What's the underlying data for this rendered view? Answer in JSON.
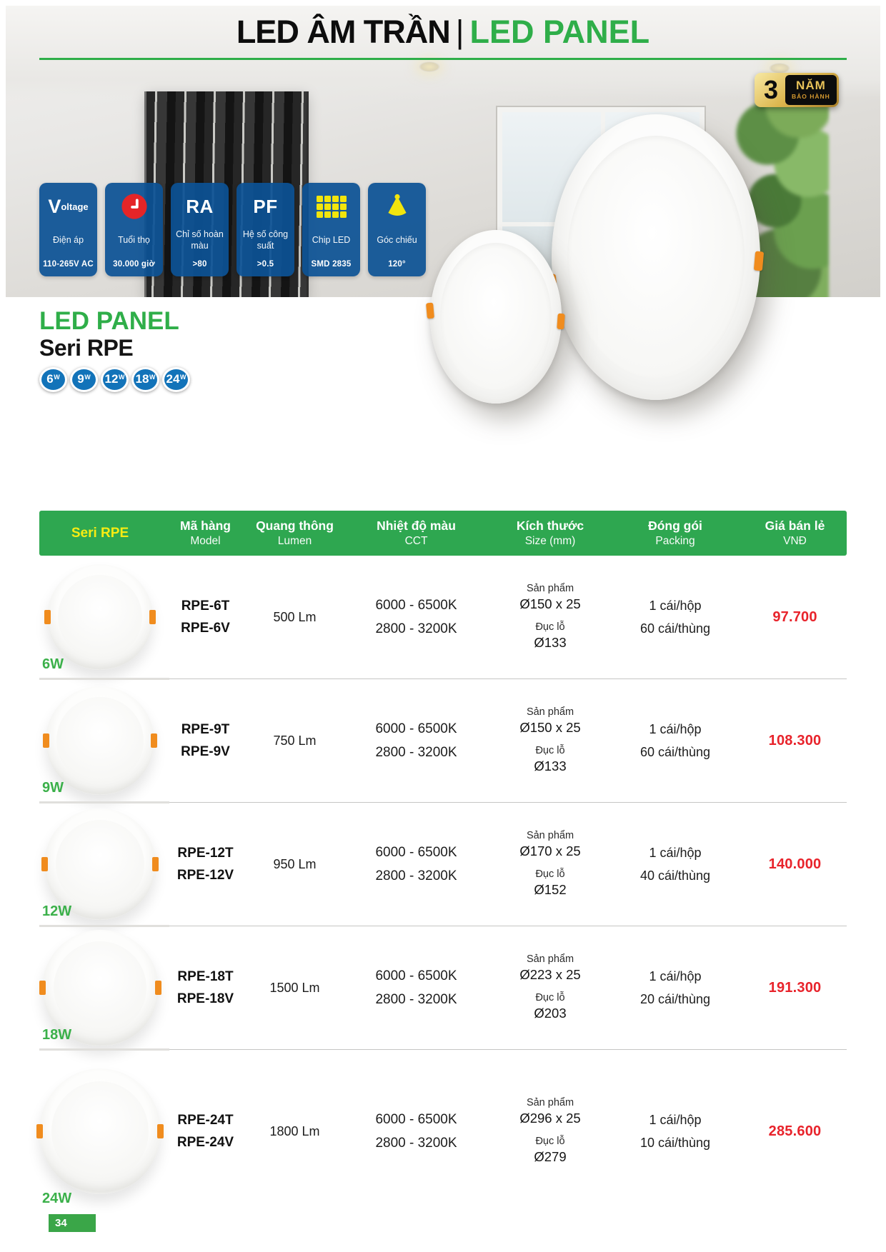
{
  "page": {
    "title_black": "LED ÂM TRẦN",
    "title_separator": "|",
    "title_green": "LED PANEL",
    "page_number": "34"
  },
  "warranty_badge": {
    "number": "3",
    "unit": "NĂM",
    "caption": "BẢO HÀNH"
  },
  "spec_cards": {
    "voltage": {
      "brand_initial": "V",
      "brand_rest": "oltage",
      "label": "Điện áp",
      "value": "110-265V AC"
    },
    "lifetime": {
      "label": "Tuổi thọ",
      "value": "30.000 giờ"
    },
    "ra": {
      "title": "RA",
      "label": "Chỉ số hoàn màu",
      "value": ">80"
    },
    "pf": {
      "title": "PF",
      "label": "Hệ số công suất",
      "value": ">0.5"
    },
    "chip": {
      "label": "Chip LED",
      "value": "SMD 2835"
    },
    "beam": {
      "label": "Góc chiếu",
      "value": "120°"
    }
  },
  "series": {
    "heading_green": "LED PANEL",
    "heading_black": "Seri RPE",
    "wattage_badges": [
      {
        "num": "6",
        "unit": "W"
      },
      {
        "num": "9",
        "unit": "W"
      },
      {
        "num": "12",
        "unit": "W"
      },
      {
        "num": "18",
        "unit": "W"
      },
      {
        "num": "24",
        "unit": "W"
      }
    ]
  },
  "table": {
    "header": {
      "seri": "Seri RPE",
      "model_vi": "Mã hàng",
      "model_en": "Model",
      "lumen_vi": "Quang thông",
      "lumen_en": "Lumen",
      "cct_vi": "Nhiệt độ màu",
      "cct_en": "CCT",
      "size_vi": "Kích thước",
      "size_en": "Size (mm)",
      "pack_vi": "Đóng gói",
      "pack_en": "Packing",
      "price_vi": "Giá bán lẻ",
      "price_en": "VNĐ"
    },
    "rows": [
      {
        "watt": "6W",
        "model1": "RPE-6T",
        "model2": "RPE-6V",
        "lumen": "500 Lm",
        "cct1": "6000 - 6500K",
        "cct2": "2800 - 3200K",
        "size_product_label": "Sản phẩm",
        "size_product": "Ø150 x 25",
        "size_hole_label": "Đục lỗ",
        "size_hole": "Ø133",
        "pack1": "1 cái/hộp",
        "pack2": "60 cái/thùng",
        "price": "97.700"
      },
      {
        "watt": "9W",
        "model1": "RPE-9T",
        "model2": "RPE-9V",
        "lumen": "750 Lm",
        "cct1": "6000 - 6500K",
        "cct2": "2800 - 3200K",
        "size_product_label": "Sản phẩm",
        "size_product": "Ø150 x 25",
        "size_hole_label": "Đục lỗ",
        "size_hole": "Ø133",
        "pack1": "1 cái/hộp",
        "pack2": "60 cái/thùng",
        "price": "108.300"
      },
      {
        "watt": "12W",
        "model1": "RPE-12T",
        "model2": "RPE-12V",
        "lumen": "950 Lm",
        "cct1": "6000 - 6500K",
        "cct2": "2800 - 3200K",
        "size_product_label": "Sản phẩm",
        "size_product": "Ø170 x 25",
        "size_hole_label": "Đục lỗ",
        "size_hole": "Ø152",
        "pack1": "1 cái/hộp",
        "pack2": "40 cái/thùng",
        "price": "140.000"
      },
      {
        "watt": "18W",
        "model1": "RPE-18T",
        "model2": "RPE-18V",
        "lumen": "1500 Lm",
        "cct1": "6000 - 6500K",
        "cct2": "2800 - 3200K",
        "size_product_label": "Sản phẩm",
        "size_product": "Ø223 x 25",
        "size_hole_label": "Đục lỗ",
        "size_hole": "Ø203",
        "pack1": "1 cái/hộp",
        "pack2": "20 cái/thùng",
        "price": "191.300"
      },
      {
        "watt": "24W",
        "model1": "RPE-24T",
        "model2": "RPE-24V",
        "lumen": "1800 Lm",
        "cct1": "6000 - 6500K",
        "cct2": "2800 - 3200K",
        "size_product_label": "Sản phẩm",
        "size_product": "Ø296 x 25",
        "size_hole_label": "Đục lỗ",
        "size_hole": "Ø279",
        "pack1": "1 cái/hộp",
        "pack2": "10 cái/thùng",
        "price": "285.600"
      }
    ]
  },
  "colors": {
    "accent_green": "#2ea750",
    "header_yellow": "#f7ec13",
    "price_red": "#e8232b",
    "spec_card_blue": "#0c5294",
    "badge_blue": "#1273b9",
    "warranty_gold": "#ddb64e",
    "clip_orange": "#f08c1e"
  }
}
